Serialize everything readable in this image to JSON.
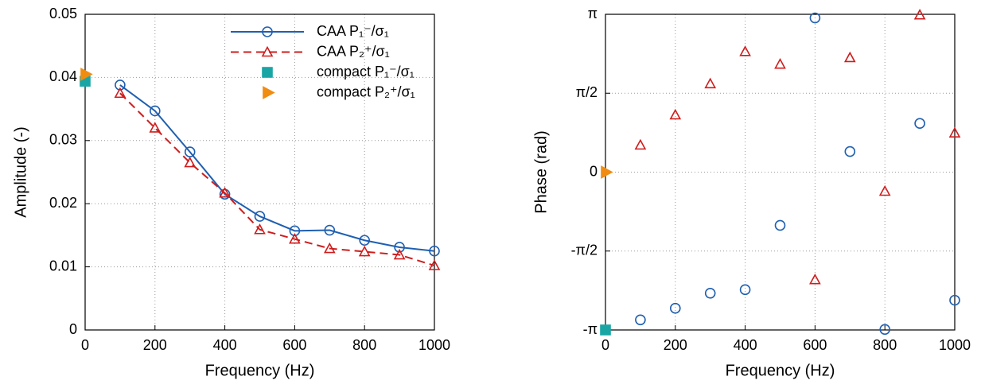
{
  "chart_data": [
    {
      "type": "line",
      "xlabel": "Frequency (Hz)",
      "ylabel": "Amplitude (-)",
      "xlim": [
        0,
        1000
      ],
      "xticks": [
        0,
        200,
        400,
        600,
        800,
        1000
      ],
      "ylim": [
        0,
        0.05
      ],
      "yticks": [
        0,
        0.01,
        0.02,
        0.03,
        0.04,
        0.05
      ],
      "grid": true,
      "legend": "upper right",
      "series": [
        {
          "name": "CAA P₁⁻/σ₁",
          "color": "#1f5fb0",
          "line_style": "solid",
          "marker": "circle",
          "x": [
            100,
            200,
            300,
            400,
            500,
            600,
            700,
            800,
            900,
            1000
          ],
          "values": [
            0.0388,
            0.0347,
            0.0282,
            0.0215,
            0.018,
            0.0157,
            0.0158,
            0.0142,
            0.0131,
            0.0125
          ]
        },
        {
          "name": "CAA P₂⁺/σ₁",
          "color": "#d01c1c",
          "line_style": "dashed",
          "marker": "triangle",
          "x": [
            100,
            200,
            300,
            400,
            500,
            600,
            700,
            800,
            900,
            1000
          ],
          "values": [
            0.0375,
            0.032,
            0.0265,
            0.0217,
            0.0159,
            0.0144,
            0.0129,
            0.0124,
            0.0119,
            0.0102
          ]
        },
        {
          "name": "compact P₁⁻/σ₁",
          "color": "#1aa5a5",
          "line_style": "none",
          "marker": "square",
          "x": [
            0
          ],
          "values": [
            0.0394
          ]
        },
        {
          "name": "compact P₂⁺/σ₁",
          "color": "#f08c10",
          "line_style": "none",
          "marker": "triangle-right",
          "x": [
            0
          ],
          "values": [
            0.0405
          ]
        }
      ]
    },
    {
      "type": "scatter",
      "xlabel": "Frequency (Hz)",
      "ylabel": "Phase (rad)",
      "xlim": [
        0,
        1000
      ],
      "xticks": [
        0,
        200,
        400,
        600,
        800,
        1000
      ],
      "ylim": [
        -3.14159,
        3.14159
      ],
      "yticks": [
        {
          "value": -3.14159,
          "label": "-π"
        },
        {
          "value": -1.5708,
          "label": "-π/2"
        },
        0,
        {
          "value": 1.5708,
          "label": "π/2"
        },
        {
          "value": 3.14159,
          "label": "π"
        }
      ],
      "grid": true,
      "series": [
        {
          "color": "#1f5fb0",
          "marker": "circle",
          "x": [
            100,
            200,
            300,
            400,
            500,
            600,
            700,
            800,
            900,
            1000
          ],
          "values": [
            -2.94,
            -2.71,
            -2.41,
            -2.34,
            -1.06,
            3.07,
            0.41,
            -3.13,
            0.97,
            -2.55
          ]
        },
        {
          "color": "#d01c1c",
          "marker": "triangle",
          "x": [
            100,
            200,
            300,
            400,
            500,
            600,
            700,
            800,
            900,
            1000
          ],
          "values": [
            0.54,
            1.14,
            1.76,
            2.4,
            2.15,
            -2.14,
            2.28,
            -0.38,
            3.13,
            0.78
          ]
        },
        {
          "color": "#1aa5a5",
          "marker": "square",
          "x": [
            0
          ],
          "values": [
            -3.14159
          ]
        },
        {
          "color": "#f08c10",
          "marker": "triangle-right",
          "x": [
            0
          ],
          "values": [
            0
          ]
        }
      ]
    }
  ]
}
